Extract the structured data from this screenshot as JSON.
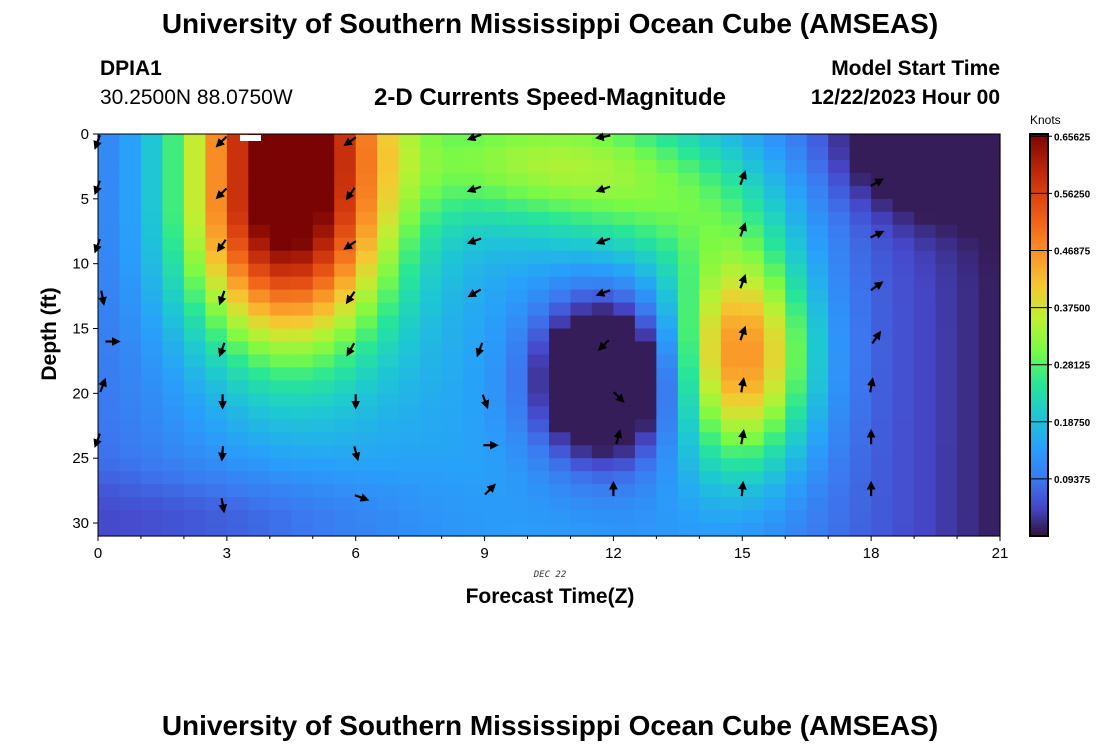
{
  "page": {
    "title": "University of Southern Mississippi Ocean Cube (AMSEAS)",
    "title_repeat": "University of Southern Mississippi Ocean Cube (AMSEAS)",
    "station_id": "DPIA1",
    "station_coords": "30.2500N  88.0750W",
    "model_start_label": "Model Start Time",
    "model_start_value": "12/22/2023 Hour 00",
    "date_label": "DEC 22"
  },
  "chart_data": {
    "type": "heatmap",
    "title": "2-D Currents Speed-Magnitude",
    "xlabel": "Forecast Time(Z)",
    "ylabel": "Depth (ft)",
    "xlim": [
      0,
      21
    ],
    "ylim": [
      0,
      31
    ],
    "x_ticks": [
      0,
      3,
      6,
      9,
      12,
      15,
      18,
      21
    ],
    "y_ticks": [
      0,
      5,
      10,
      15,
      20,
      25,
      30
    ],
    "colorbar": {
      "units": "Knots",
      "range": [
        0,
        0.66
      ],
      "ticks": [
        {
          "value": 0.09375,
          "label": "0.09375"
        },
        {
          "value": 0.1875,
          "label": "0.18750"
        },
        {
          "value": 0.28125,
          "label": "0.28125"
        },
        {
          "value": 0.375,
          "label": "0.37500"
        },
        {
          "value": 0.46875,
          "label": "0.46875"
        },
        {
          "value": 0.5625,
          "label": "0.56250"
        },
        {
          "value": 0.65625,
          "label": "0.65625"
        }
      ]
    },
    "speed_field_features": [
      {
        "name": "core-maximum",
        "x": 4.3,
        "depth": 3,
        "speed": 0.65
      },
      {
        "name": "minimum-pool",
        "x": 11.8,
        "depth": 19,
        "speed": 0.03
      },
      {
        "name": "secondary-maximum",
        "x": 15.0,
        "depth": 17,
        "speed": 0.43
      },
      {
        "name": "surface-minimum",
        "x": 19.0,
        "depth": 0.5,
        "speed": 0.03
      }
    ],
    "arrows": [
      {
        "t": 0,
        "d": 0.5,
        "dir": 200
      },
      {
        "t": 0,
        "d": 4,
        "dir": 200
      },
      {
        "t": 0,
        "d": 8.5,
        "dir": 200
      },
      {
        "t": 0.1,
        "d": 12.5,
        "dir": 170
      },
      {
        "t": 0.3,
        "d": 16,
        "dir": 90
      },
      {
        "t": 0.1,
        "d": 19.5,
        "dir": 20
      },
      {
        "t": 0,
        "d": 23.5,
        "dir": 200
      },
      {
        "t": 2.9,
        "d": 0.5,
        "dir": 225
      },
      {
        "t": 2.9,
        "d": 4.5,
        "dir": 225
      },
      {
        "t": 2.9,
        "d": 8.5,
        "dir": 215
      },
      {
        "t": 2.9,
        "d": 12.5,
        "dir": 200
      },
      {
        "t": 2.9,
        "d": 16.5,
        "dir": 200
      },
      {
        "t": 2.9,
        "d": 20.5,
        "dir": 180
      },
      {
        "t": 2.9,
        "d": 24.5,
        "dir": 185
      },
      {
        "t": 2.9,
        "d": 28.5,
        "dir": 170
      },
      {
        "t": 5.9,
        "d": 0.5,
        "dir": 235
      },
      {
        "t": 5.9,
        "d": 4.5,
        "dir": 215
      },
      {
        "t": 5.9,
        "d": 8.5,
        "dir": 235
      },
      {
        "t": 5.9,
        "d": 12.5,
        "dir": 215
      },
      {
        "t": 5.9,
        "d": 16.5,
        "dir": 210
      },
      {
        "t": 6.0,
        "d": 20.5,
        "dir": 180
      },
      {
        "t": 6.0,
        "d": 24.5,
        "dir": 165
      },
      {
        "t": 6.1,
        "d": 28,
        "dir": 110
      },
      {
        "t": 8.8,
        "d": 0.2,
        "dir": 250
      },
      {
        "t": 8.8,
        "d": 4.2,
        "dir": 250
      },
      {
        "t": 8.8,
        "d": 8.2,
        "dir": 250
      },
      {
        "t": 8.8,
        "d": 12.2,
        "dir": 240
      },
      {
        "t": 8.9,
        "d": 16.5,
        "dir": 200
      },
      {
        "t": 9.0,
        "d": 20.5,
        "dir": 160
      },
      {
        "t": 9.1,
        "d": 24,
        "dir": 90
      },
      {
        "t": 9.1,
        "d": 27.5,
        "dir": 45
      },
      {
        "t": 11.8,
        "d": 0.2,
        "dir": 260
      },
      {
        "t": 11.8,
        "d": 4.2,
        "dir": 250
      },
      {
        "t": 11.8,
        "d": 8.2,
        "dir": 250
      },
      {
        "t": 11.8,
        "d": 12.2,
        "dir": 250
      },
      {
        "t": 11.8,
        "d": 16.2,
        "dir": 225
      },
      {
        "t": 12.1,
        "d": 20.2,
        "dir": 135
      },
      {
        "t": 12.1,
        "d": 23.5,
        "dir": 15
      },
      {
        "t": 12.0,
        "d": 27.5,
        "dir": 0
      },
      {
        "t": 15.0,
        "d": 3.5,
        "dir": 20
      },
      {
        "t": 15.0,
        "d": 7.5,
        "dir": 20
      },
      {
        "t": 15.0,
        "d": 11.5,
        "dir": 20
      },
      {
        "t": 15.0,
        "d": 15.5,
        "dir": 20
      },
      {
        "t": 15.0,
        "d": 19.5,
        "dir": 10
      },
      {
        "t": 15.0,
        "d": 23.5,
        "dir": 10
      },
      {
        "t": 15.0,
        "d": 27.5,
        "dir": 5
      },
      {
        "t": 18.1,
        "d": 3.8,
        "dir": 60
      },
      {
        "t": 18.1,
        "d": 7.8,
        "dir": 65
      },
      {
        "t": 18.1,
        "d": 11.8,
        "dir": 55
      },
      {
        "t": 18.1,
        "d": 15.8,
        "dir": 35
      },
      {
        "t": 18.0,
        "d": 19.5,
        "dir": 10
      },
      {
        "t": 18.0,
        "d": 23.5,
        "dir": 0
      },
      {
        "t": 18.0,
        "d": 27.5,
        "dir": 0
      }
    ]
  }
}
